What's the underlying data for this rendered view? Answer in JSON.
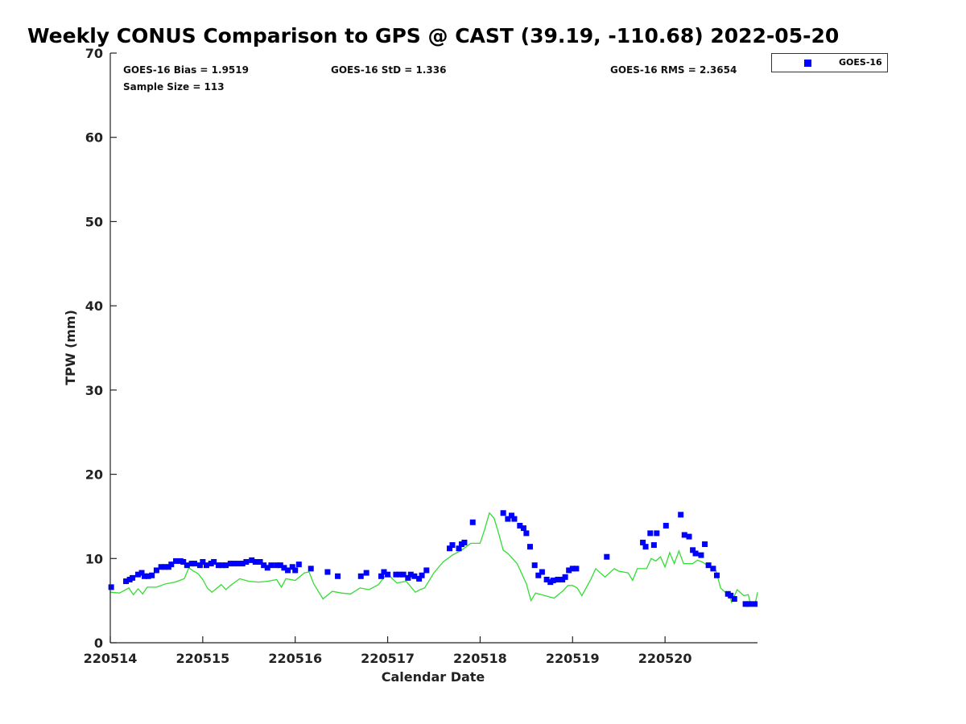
{
  "chart_data": {
    "type": "scatter",
    "title": "Weekly CONUS Comparison to GPS @ CAST (39.19, -110.68) 2022-05-20",
    "xlabel": "Calendar Date",
    "ylabel": "TPW (mm)",
    "xlim": [
      0,
      7
    ],
    "ylim": [
      0,
      70
    ],
    "x_units": "days since 220514",
    "xticks": [
      0,
      1,
      2,
      3,
      4,
      5,
      6
    ],
    "xtick_labels": [
      "220514",
      "220515",
      "220516",
      "220517",
      "220518",
      "220519",
      "220520"
    ],
    "yticks": [
      0,
      10,
      20,
      30,
      40,
      50,
      60,
      70
    ],
    "ytick_labels": [
      "0",
      "10",
      "20",
      "30",
      "40",
      "50",
      "60",
      "70"
    ],
    "grid": false,
    "legend": {
      "placement": "top-right outside",
      "entries": [
        "GOES-16"
      ]
    },
    "stats": {
      "bias": "GOES-16 Bias = 1.9519",
      "std": "GOES-16 StD = 1.336",
      "rms": "GOES-16 RMS = 2.3654",
      "sample": "Sample Size = 113"
    },
    "series": [
      {
        "name": "GOES-16",
        "kind": "scatter",
        "color": "#0000ff",
        "points": [
          [
            0.01,
            6.6
          ],
          [
            0.17,
            7.3
          ],
          [
            0.21,
            7.5
          ],
          [
            0.24,
            7.7
          ],
          [
            0.3,
            8.1
          ],
          [
            0.34,
            8.3
          ],
          [
            0.37,
            7.9
          ],
          [
            0.41,
            7.9
          ],
          [
            0.45,
            8.0
          ],
          [
            0.5,
            8.6
          ],
          [
            0.55,
            9.0
          ],
          [
            0.59,
            9.0
          ],
          [
            0.63,
            9.0
          ],
          [
            0.66,
            9.3
          ],
          [
            0.71,
            9.7
          ],
          [
            0.76,
            9.7
          ],
          [
            0.79,
            9.6
          ],
          [
            0.83,
            9.2
          ],
          [
            0.88,
            9.4
          ],
          [
            0.91,
            9.4
          ],
          [
            0.97,
            9.2
          ],
          [
            1.0,
            9.6
          ],
          [
            1.04,
            9.2
          ],
          [
            1.09,
            9.4
          ],
          [
            1.12,
            9.6
          ],
          [
            1.17,
            9.2
          ],
          [
            1.21,
            9.2
          ],
          [
            1.25,
            9.2
          ],
          [
            1.3,
            9.4
          ],
          [
            1.33,
            9.4
          ],
          [
            1.38,
            9.4
          ],
          [
            1.43,
            9.4
          ],
          [
            1.47,
            9.6
          ],
          [
            1.53,
            9.8
          ],
          [
            1.57,
            9.6
          ],
          [
            1.62,
            9.6
          ],
          [
            1.66,
            9.2
          ],
          [
            1.7,
            8.9
          ],
          [
            1.74,
            9.2
          ],
          [
            1.8,
            9.2
          ],
          [
            1.84,
            9.2
          ],
          [
            1.88,
            8.9
          ],
          [
            1.92,
            8.6
          ],
          [
            1.97,
            9.0
          ],
          [
            2.0,
            8.6
          ],
          [
            2.04,
            9.3
          ],
          [
            2.17,
            8.8
          ],
          [
            2.35,
            8.4
          ],
          [
            2.46,
            7.9
          ],
          [
            2.71,
            7.9
          ],
          [
            2.77,
            8.3
          ],
          [
            2.93,
            7.9
          ],
          [
            2.96,
            8.4
          ],
          [
            3.0,
            8.1
          ],
          [
            3.09,
            8.1
          ],
          [
            3.13,
            8.1
          ],
          [
            3.17,
            8.1
          ],
          [
            3.22,
            7.7
          ],
          [
            3.25,
            8.1
          ],
          [
            3.29,
            7.9
          ],
          [
            3.34,
            7.6
          ],
          [
            3.37,
            8.0
          ],
          [
            3.42,
            8.6
          ],
          [
            3.67,
            11.2
          ],
          [
            3.7,
            11.6
          ],
          [
            3.77,
            11.2
          ],
          [
            3.8,
            11.7
          ],
          [
            3.83,
            11.9
          ],
          [
            3.92,
            14.3
          ],
          [
            4.25,
            15.4
          ],
          [
            4.3,
            14.7
          ],
          [
            4.34,
            15.1
          ],
          [
            4.37,
            14.7
          ],
          [
            4.43,
            13.9
          ],
          [
            4.47,
            13.6
          ],
          [
            4.5,
            13.0
          ],
          [
            4.54,
            11.4
          ],
          [
            4.59,
            9.2
          ],
          [
            4.63,
            8.0
          ],
          [
            4.67,
            8.4
          ],
          [
            4.72,
            7.5
          ],
          [
            4.76,
            7.2
          ],
          [
            4.79,
            7.4
          ],
          [
            4.84,
            7.5
          ],
          [
            4.89,
            7.5
          ],
          [
            4.92,
            7.8
          ],
          [
            4.96,
            8.6
          ],
          [
            5.0,
            8.8
          ],
          [
            5.04,
            8.8
          ],
          [
            5.37,
            10.2
          ],
          [
            5.76,
            11.9
          ],
          [
            5.79,
            11.4
          ],
          [
            5.84,
            13.0
          ],
          [
            5.88,
            11.6
          ],
          [
            5.91,
            13.0
          ],
          [
            6.01,
            13.9
          ],
          [
            6.17,
            15.2
          ],
          [
            6.21,
            12.8
          ],
          [
            6.26,
            12.6
          ],
          [
            6.3,
            11.0
          ],
          [
            6.33,
            10.6
          ],
          [
            6.39,
            10.4
          ],
          [
            6.43,
            11.7
          ],
          [
            6.47,
            9.2
          ],
          [
            6.52,
            8.8
          ],
          [
            6.56,
            8.0
          ],
          [
            6.68,
            5.8
          ],
          [
            6.71,
            5.6
          ],
          [
            6.75,
            5.2
          ],
          [
            6.87,
            4.6
          ],
          [
            6.91,
            4.6
          ],
          [
            6.97,
            4.6
          ]
        ]
      },
      {
        "name": "GPS",
        "kind": "line",
        "color": "#33dd33",
        "points": [
          [
            0,
            6.0
          ],
          [
            0.1,
            5.9
          ],
          [
            0.2,
            6.5
          ],
          [
            0.25,
            5.7
          ],
          [
            0.3,
            6.4
          ],
          [
            0.35,
            5.8
          ],
          [
            0.4,
            6.6
          ],
          [
            0.5,
            6.6
          ],
          [
            0.6,
            7.0
          ],
          [
            0.7,
            7.2
          ],
          [
            0.8,
            7.6
          ],
          [
            0.85,
            8.9
          ],
          [
            0.9,
            8.5
          ],
          [
            0.95,
            8.2
          ],
          [
            1.0,
            7.5
          ],
          [
            1.05,
            6.5
          ],
          [
            1.1,
            6.0
          ],
          [
            1.2,
            6.9
          ],
          [
            1.25,
            6.3
          ],
          [
            1.3,
            6.8
          ],
          [
            1.4,
            7.6
          ],
          [
            1.5,
            7.3
          ],
          [
            1.6,
            7.2
          ],
          [
            1.7,
            7.3
          ],
          [
            1.8,
            7.5
          ],
          [
            1.85,
            6.6
          ],
          [
            1.9,
            7.6
          ],
          [
            2.0,
            7.4
          ],
          [
            2.1,
            8.3
          ],
          [
            2.15,
            8.4
          ],
          [
            2.2,
            7.0
          ],
          [
            2.3,
            5.2
          ],
          [
            2.4,
            6.1
          ],
          [
            2.5,
            5.9
          ],
          [
            2.6,
            5.8
          ],
          [
            2.7,
            6.5
          ],
          [
            2.8,
            6.3
          ],
          [
            2.9,
            6.9
          ],
          [
            3.0,
            8.3
          ],
          [
            3.05,
            7.6
          ],
          [
            3.1,
            7.1
          ],
          [
            3.2,
            7.3
          ],
          [
            3.3,
            6.0
          ],
          [
            3.35,
            6.3
          ],
          [
            3.4,
            6.5
          ],
          [
            3.5,
            8.3
          ],
          [
            3.6,
            9.6
          ],
          [
            3.7,
            10.4
          ],
          [
            3.8,
            11.0
          ],
          [
            3.9,
            11.8
          ],
          [
            4.0,
            11.8
          ],
          [
            4.05,
            13.5
          ],
          [
            4.1,
            15.4
          ],
          [
            4.15,
            14.8
          ],
          [
            4.2,
            13.0
          ],
          [
            4.25,
            11.0
          ],
          [
            4.3,
            10.6
          ],
          [
            4.4,
            9.4
          ],
          [
            4.5,
            7.0
          ],
          [
            4.55,
            5.0
          ],
          [
            4.6,
            5.9
          ],
          [
            4.7,
            5.6
          ],
          [
            4.8,
            5.3
          ],
          [
            4.9,
            6.2
          ],
          [
            4.95,
            6.8
          ],
          [
            5.0,
            6.8
          ],
          [
            5.05,
            6.5
          ],
          [
            5.1,
            5.6
          ],
          [
            5.2,
            7.6
          ],
          [
            5.25,
            8.8
          ],
          [
            5.35,
            7.8
          ],
          [
            5.45,
            8.8
          ],
          [
            5.5,
            8.5
          ],
          [
            5.6,
            8.3
          ],
          [
            5.65,
            7.4
          ],
          [
            5.7,
            8.8
          ],
          [
            5.8,
            8.8
          ],
          [
            5.85,
            10.0
          ],
          [
            5.9,
            9.7
          ],
          [
            5.95,
            10.2
          ],
          [
            6.0,
            9.0
          ],
          [
            6.05,
            10.7
          ],
          [
            6.1,
            9.4
          ],
          [
            6.15,
            10.9
          ],
          [
            6.2,
            9.4
          ],
          [
            6.3,
            9.4
          ],
          [
            6.35,
            9.8
          ],
          [
            6.4,
            9.6
          ],
          [
            6.5,
            8.9
          ],
          [
            6.55,
            8.6
          ],
          [
            6.6,
            6.5
          ],
          [
            6.7,
            5.5
          ],
          [
            6.72,
            4.8
          ],
          [
            6.78,
            6.3
          ],
          [
            6.85,
            5.6
          ],
          [
            6.9,
            5.7
          ],
          [
            6.93,
            4.4
          ],
          [
            6.97,
            4.4
          ],
          [
            7.0,
            6.0
          ]
        ]
      }
    ]
  }
}
